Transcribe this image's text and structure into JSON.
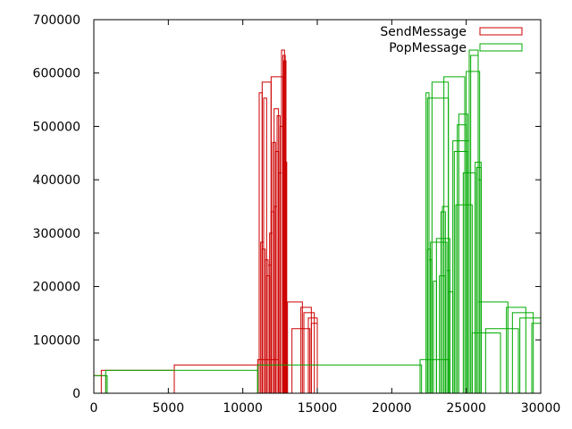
{
  "chart_data": {
    "type": "bar",
    "title": "",
    "xlabel": "",
    "ylabel": "",
    "xlim": [
      0,
      30000
    ],
    "ylim": [
      0,
      700000
    ],
    "xticks": [
      0,
      5000,
      10000,
      15000,
      20000,
      25000,
      30000
    ],
    "yticks": [
      0,
      100000,
      200000,
      300000,
      400000,
      500000,
      600000,
      700000
    ],
    "grid": false,
    "legend_position": "top-right",
    "series": [
      {
        "name": "SendMessage",
        "color": "#cc0000",
        "boxes": [
          {
            "x0": 0,
            "x1": 800,
            "y": 33000
          },
          {
            "x0": 500,
            "x1": 5400,
            "y": 43000
          },
          {
            "x0": 5400,
            "x1": 11000,
            "y": 53000
          },
          {
            "x0": 11000,
            "x1": 12400,
            "y": 63000
          },
          {
            "x0": 11100,
            "x1": 11300,
            "y": 563000
          },
          {
            "x0": 11200,
            "x1": 11400,
            "y": 283000
          },
          {
            "x0": 11300,
            "x1": 11900,
            "y": 583000
          },
          {
            "x0": 11300,
            "x1": 11500,
            "y": 270000
          },
          {
            "x0": 11400,
            "x1": 11600,
            "y": 553000
          },
          {
            "x0": 11500,
            "x1": 11700,
            "y": 250000
          },
          {
            "x0": 11600,
            "x1": 11800,
            "y": 220000
          },
          {
            "x0": 11700,
            "x1": 11900,
            "y": 240000
          },
          {
            "x0": 11800,
            "x1": 12000,
            "y": 300000
          },
          {
            "x0": 11900,
            "x1": 12100,
            "y": 340000
          },
          {
            "x0": 11900,
            "x1": 12700,
            "y": 593000
          },
          {
            "x0": 12000,
            "x1": 12200,
            "y": 470000
          },
          {
            "x0": 12100,
            "x1": 12300,
            "y": 350000
          },
          {
            "x0": 12100,
            "x1": 12400,
            "y": 533000
          },
          {
            "x0": 12200,
            "x1": 12400,
            "y": 453000
          },
          {
            "x0": 12300,
            "x1": 12500,
            "y": 520000
          },
          {
            "x0": 12400,
            "x1": 12600,
            "y": 413000
          },
          {
            "x0": 12500,
            "x1": 12700,
            "y": 500000
          },
          {
            "x0": 12600,
            "x1": 12800,
            "y": 643000
          },
          {
            "x0": 12700,
            "x1": 12850,
            "y": 633000
          },
          {
            "x0": 12750,
            "x1": 12900,
            "y": 623000
          },
          {
            "x0": 12800,
            "x1": 12950,
            "y": 433000
          },
          {
            "x0": 12900,
            "x1": 13000,
            "y": 53000
          },
          {
            "x0": 13000,
            "x1": 14000,
            "y": 171000
          },
          {
            "x0": 13300,
            "x1": 14500,
            "y": 121000
          },
          {
            "x0": 13900,
            "x1": 14600,
            "y": 161000
          },
          {
            "x0": 14100,
            "x1": 14800,
            "y": 151000
          },
          {
            "x0": 14400,
            "x1": 15000,
            "y": 141000
          },
          {
            "x0": 14600,
            "x1": 15000,
            "y": 131000
          }
        ]
      },
      {
        "name": "PopMessage",
        "color": "#00aa00",
        "boxes": [
          {
            "x0": 0,
            "x1": 900,
            "y": 33000
          },
          {
            "x0": 800,
            "x1": 11000,
            "y": 43000
          },
          {
            "x0": 11000,
            "x1": 22000,
            "y": 53000
          },
          {
            "x0": 21900,
            "x1": 23900,
            "y": 63000
          },
          {
            "x0": 22300,
            "x1": 22500,
            "y": 563000
          },
          {
            "x0": 22400,
            "x1": 22600,
            "y": 270000
          },
          {
            "x0": 22400,
            "x1": 23800,
            "y": 553000
          },
          {
            "x0": 22500,
            "x1": 22700,
            "y": 250000
          },
          {
            "x0": 22600,
            "x1": 23700,
            "y": 283000
          },
          {
            "x0": 22700,
            "x1": 23800,
            "y": 583000
          },
          {
            "x0": 22800,
            "x1": 23000,
            "y": 210000
          },
          {
            "x0": 23000,
            "x1": 23900,
            "y": 290000
          },
          {
            "x0": 23200,
            "x1": 23600,
            "y": 220000
          },
          {
            "x0": 23300,
            "x1": 23600,
            "y": 340000
          },
          {
            "x0": 23400,
            "x1": 23800,
            "y": 350000
          },
          {
            "x0": 23500,
            "x1": 24900,
            "y": 593000
          },
          {
            "x0": 23700,
            "x1": 23900,
            "y": 230000
          },
          {
            "x0": 23800,
            "x1": 24100,
            "y": 190000
          },
          {
            "x0": 24100,
            "x1": 25200,
            "y": 473000
          },
          {
            "x0": 24200,
            "x1": 25100,
            "y": 453000
          },
          {
            "x0": 24300,
            "x1": 25400,
            "y": 353000
          },
          {
            "x0": 24400,
            "x1": 25000,
            "y": 503000
          },
          {
            "x0": 24500,
            "x1": 25100,
            "y": 523000
          },
          {
            "x0": 24800,
            "x1": 25600,
            "y": 413000
          },
          {
            "x0": 25000,
            "x1": 25900,
            "y": 603000
          },
          {
            "x0": 25200,
            "x1": 25800,
            "y": 643000
          },
          {
            "x0": 25300,
            "x1": 25800,
            "y": 633000
          },
          {
            "x0": 25600,
            "x1": 26000,
            "y": 433000
          },
          {
            "x0": 25700,
            "x1": 26000,
            "y": 423000
          },
          {
            "x0": 25800,
            "x1": 26000,
            "y": 400000
          },
          {
            "x0": 25400,
            "x1": 27300,
            "y": 113000
          },
          {
            "x0": 25800,
            "x1": 27800,
            "y": 171000
          },
          {
            "x0": 26300,
            "x1": 28500,
            "y": 121000
          },
          {
            "x0": 27700,
            "x1": 29000,
            "y": 161000
          },
          {
            "x0": 28100,
            "x1": 29500,
            "y": 151000
          },
          {
            "x0": 28600,
            "x1": 30000,
            "y": 141000
          },
          {
            "x0": 29400,
            "x1": 30000,
            "y": 131000
          }
        ]
      }
    ]
  }
}
